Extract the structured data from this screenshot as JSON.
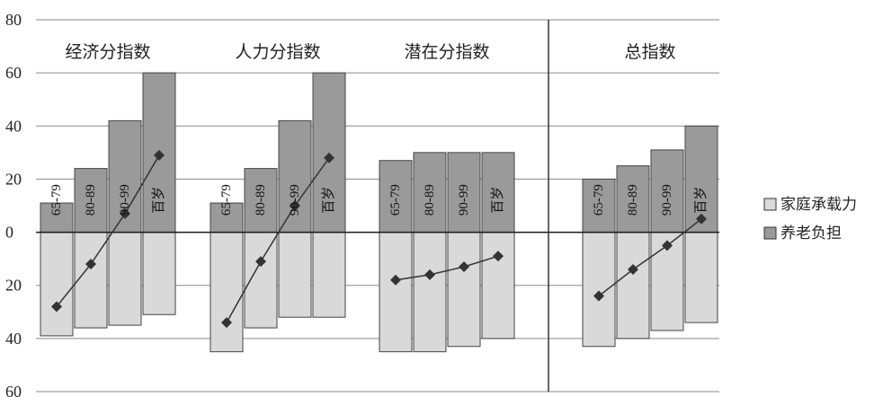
{
  "chart_data": {
    "type": "bar",
    "ylim": [
      -60,
      80
    ],
    "yticks": [
      {
        "value": 80,
        "label": "80"
      },
      {
        "value": 60,
        "label": "60"
      },
      {
        "value": 40,
        "label": "40"
      },
      {
        "value": 20,
        "label": "20"
      },
      {
        "value": 0,
        "label": "0"
      },
      {
        "value": -20,
        "label": "20"
      },
      {
        "value": -40,
        "label": "40"
      },
      {
        "value": -60,
        "label": "60"
      }
    ],
    "categories": [
      "65-79",
      "80-89",
      "90-99",
      "百岁"
    ],
    "legend": [
      {
        "name": "家庭承载力",
        "color": "#d9d9d9"
      },
      {
        "name": "养老负担",
        "color": "#9a9a9a"
      }
    ],
    "line_color": "#333333",
    "panels": [
      {
        "title": "经济分指数",
        "burden": [
          11,
          24,
          42,
          60
        ],
        "capacity": [
          -39,
          -36,
          -35,
          -31
        ],
        "line": [
          -28,
          -12,
          7,
          29
        ]
      },
      {
        "title": "人力分指数",
        "burden": [
          11,
          24,
          42,
          60
        ],
        "capacity": [
          -45,
          -36,
          -32,
          -32
        ],
        "line": [
          -34,
          -11,
          10,
          28
        ]
      },
      {
        "title": "潜在分指数",
        "burden": [
          27,
          30,
          30,
          30
        ],
        "capacity": [
          -45,
          -45,
          -43,
          -40
        ],
        "line": [
          -18,
          -16,
          -13,
          -9
        ]
      },
      {
        "title": "总指数",
        "burden": [
          20,
          25,
          31,
          40
        ],
        "capacity": [
          -43,
          -40,
          -37,
          -34
        ],
        "line": [
          -24,
          -14,
          -5,
          5
        ]
      }
    ]
  }
}
